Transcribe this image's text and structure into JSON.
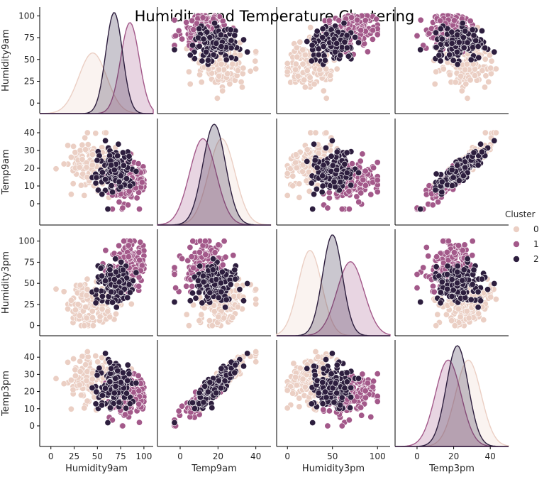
{
  "chart_data": {
    "type": "scatter",
    "title": "Humidity and Temperature Clustering",
    "variables": [
      "Humidity9am",
      "Temp9am",
      "Humidity3pm",
      "Temp3pm"
    ],
    "ranges": {
      "Humidity9am": [
        -12,
        110
      ],
      "Temp9am": [
        -12,
        48
      ],
      "Humidity3pm": [
        -12,
        114
      ],
      "Temp3pm": [
        -12,
        50
      ]
    },
    "ticks": {
      "Humidity9am": [
        0,
        25,
        50,
        75,
        100
      ],
      "Temp9am": [
        0,
        20,
        40
      ],
      "Humidity3pm": [
        0,
        50,
        100
      ],
      "Temp3pm": [
        0,
        20,
        40
      ]
    },
    "row_ticks": {
      "Humidity9am": [
        0,
        25,
        50,
        75,
        100
      ],
      "Temp9am": [
        0,
        10,
        20,
        30,
        40
      ],
      "Humidity3pm": [
        0,
        25,
        50,
        75,
        100
      ],
      "Temp3pm": [
        0,
        10,
        20,
        30,
        40
      ]
    },
    "legend": {
      "title": "Cluster",
      "placement": "right",
      "entries": [
        "0",
        "1",
        "2"
      ]
    },
    "colors": {
      "0": "#ebcfc4",
      "1": "#a3598a",
      "2": "#2d1e3e"
    },
    "clusters": [
      {
        "name": "0",
        "center": {
          "Humidity9am": 45,
          "Temp9am": 22,
          "Humidity3pm": 25,
          "Temp3pm": 28
        },
        "sd": {
          "Humidity9am": 15,
          "Temp9am": 7,
          "Humidity3pm": 13,
          "Temp3pm": 7
        }
      },
      {
        "name": "1",
        "center": {
          "Humidity9am": 85,
          "Temp9am": 12,
          "Humidity3pm": 70,
          "Temp3pm": 17
        },
        "sd": {
          "Humidity9am": 10,
          "Temp9am": 7,
          "Humidity3pm": 15,
          "Temp3pm": 7
        }
      },
      {
        "name": "2",
        "center": {
          "Humidity9am": 68,
          "Temp9am": 18,
          "Humidity3pm": 50,
          "Temp3pm": 22
        },
        "sd": {
          "Humidity9am": 9,
          "Temp9am": 6,
          "Humidity3pm": 11,
          "Temp3pm": 6
        }
      }
    ],
    "grid": false
  }
}
